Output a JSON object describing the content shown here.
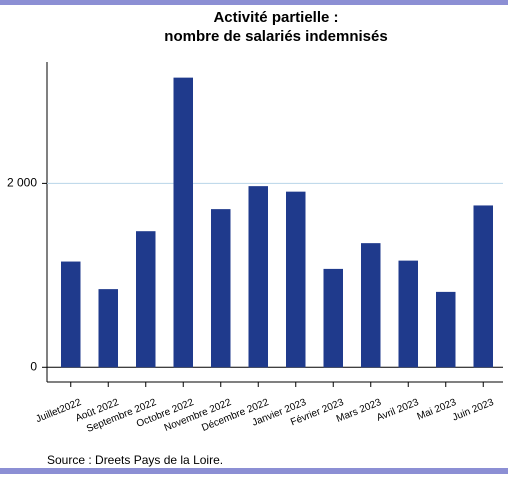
{
  "chart_data": {
    "type": "bar",
    "title": "Activité partielle :",
    "subtitle": "nombre de salariés indemnisés",
    "categories": [
      "Juillet2022",
      "Août 2022",
      "Septembre 2022",
      "Octobre 2022",
      "Novembre 2022",
      "Décembre 2022",
      "Janvier 2023",
      "Février 2023",
      "Mars 2023",
      "Avril 2023",
      "Mai 2023",
      "Juin 2023"
    ],
    "values": [
      1150,
      850,
      1480,
      3150,
      1720,
      1970,
      1910,
      1070,
      1350,
      1160,
      820,
      1760
    ],
    "color": "#1f3a8c",
    "ylim": [
      -160,
      3320
    ],
    "yticks": [
      0,
      {
        "value": 2000,
        "label": "2 000"
      }
    ],
    "grid": true,
    "source": "Source : Dreets Pays de la Loire."
  }
}
